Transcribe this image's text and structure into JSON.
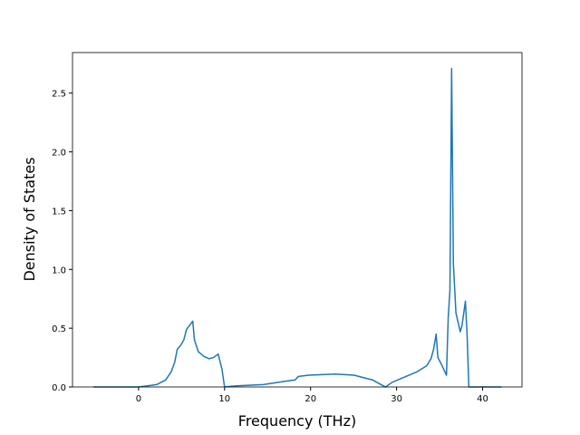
{
  "chart_data": {
    "type": "line",
    "xlabel": "Frequency (THz)",
    "ylabel": "Density of States",
    "x": [
      -5.26,
      0,
      1.05,
      2.1,
      3.16,
      3.8,
      4.2,
      4.5,
      4.95,
      5.26,
      5.58,
      5.9,
      6.3,
      6.5,
      6.95,
      7.6,
      8.2,
      8.7,
      9.26,
      9.7,
      10,
      11.4,
      14.5,
      17.2,
      18.2,
      18.6,
      19.8,
      22.9,
      25.05,
      27.2,
      28.2,
      28.7,
      29.5,
      30.8,
      32.4,
      33.5,
      34,
      34.3,
      34.6,
      34.8,
      35.3,
      35.8,
      36.0,
      36.2,
      36.4,
      36.6,
      36.9,
      37.4,
      37.6,
      38.0,
      38.2,
      38.4,
      42.2
    ],
    "series": [
      {
        "color": "#1f77b4",
        "values": [
          0,
          0,
          0.01,
          0.02,
          0.06,
          0.13,
          0.21,
          0.32,
          0.36,
          0.4,
          0.49,
          0.52,
          0.56,
          0.4,
          0.3,
          0.26,
          0.24,
          0.25,
          0.28,
          0.15,
          0.0,
          0.01,
          0.02,
          0.05,
          0.06,
          0.09,
          0.1,
          0.11,
          0.1,
          0.06,
          0.02,
          0.0,
          0.04,
          0.08,
          0.13,
          0.18,
          0.24,
          0.32,
          0.45,
          0.25,
          0.18,
          0.1,
          0.59,
          0.82,
          2.71,
          1.05,
          0.63,
          0.47,
          0.52,
          0.73,
          0.44,
          0.0,
          0.0
        ]
      }
    ],
    "xlim": [
      -7.68,
      44.58
    ],
    "ylim": [
      0,
      2.845
    ],
    "xticks": [
      0,
      10,
      20,
      30,
      40
    ],
    "yticks": [
      {
        "value": 0,
        "label": "0.0"
      },
      0.5,
      {
        "value": 1,
        "label": "1.0"
      },
      1.5,
      {
        "value": 2,
        "label": "2.0"
      },
      2.5
    ]
  }
}
